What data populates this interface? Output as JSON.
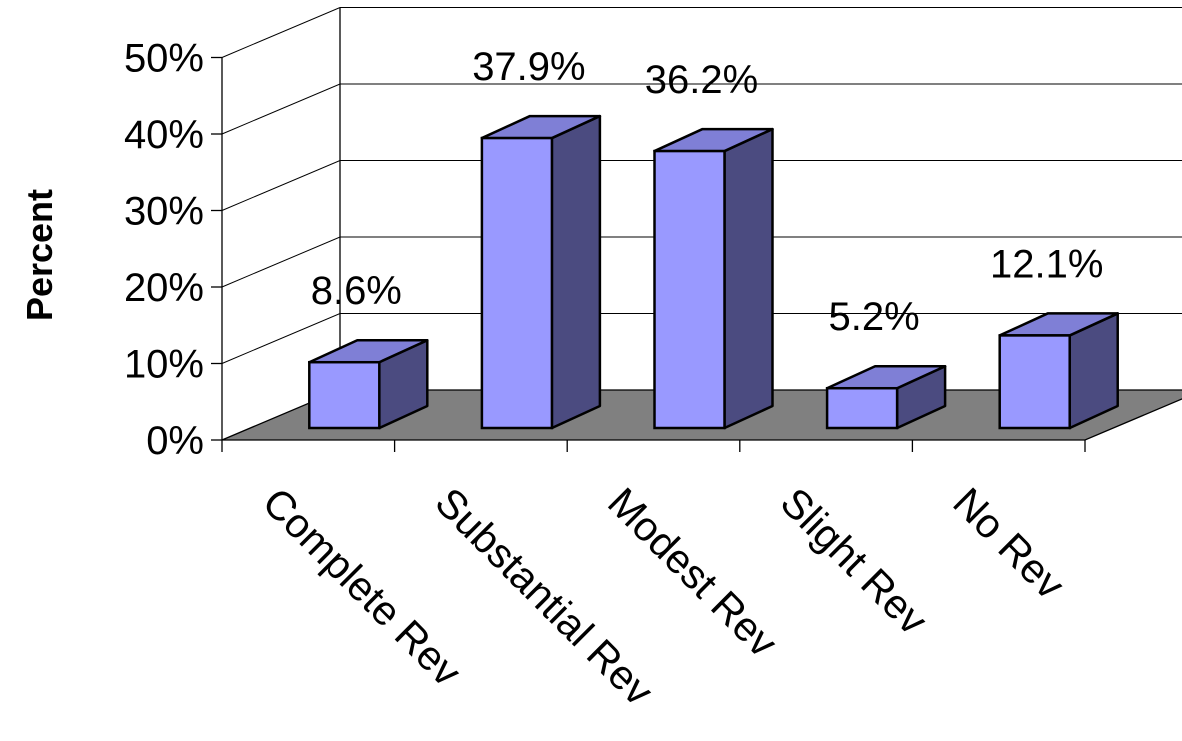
{
  "chart_data": {
    "type": "bar",
    "style": "3d-column",
    "categories": [
      "Complete Rev",
      "Substantial Rev",
      "Modest Rev",
      "Slight Rev",
      "No Rev"
    ],
    "values": [
      8.6,
      37.9,
      36.2,
      5.2,
      12.1
    ],
    "data_labels": [
      "8.6%",
      "37.9%",
      "36.2%",
      "5.2%",
      "12.1%"
    ],
    "ylabel": "Percent",
    "ylim": [
      0,
      50
    ],
    "yticks": [
      0,
      10,
      20,
      30,
      40,
      50
    ],
    "ytick_labels": [
      "0%",
      "10%",
      "20%",
      "30%",
      "40%",
      "50%"
    ],
    "grid": true,
    "legend": "none",
    "colors": {
      "bar_front": "#9999ff",
      "bar_top": "#7f7fd6",
      "bar_side": "#4b4b80",
      "floor": "#808080",
      "outline": "#000000"
    }
  }
}
